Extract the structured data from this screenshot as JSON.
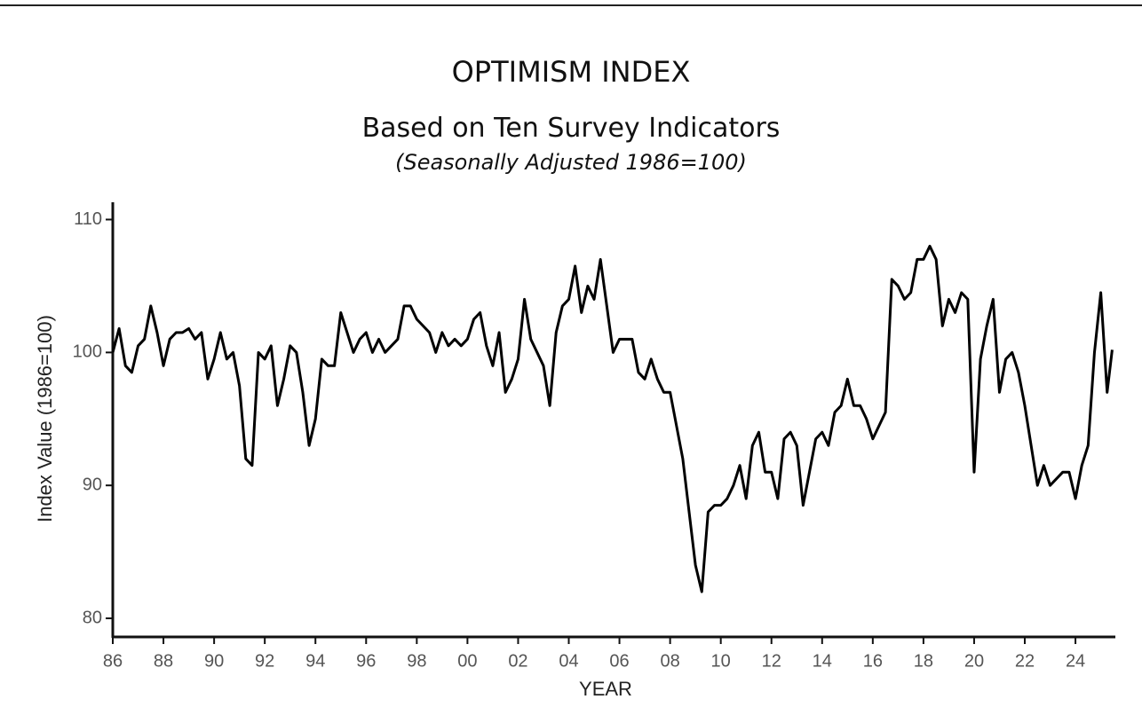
{
  "chart_data": {
    "type": "line",
    "title": "OPTIMISM INDEX",
    "subtitle": "Based on Ten Survey Indicators",
    "note": "(Seasonally Adjusted 1986=100)",
    "x_label": "YEAR",
    "y_label": "Index Value (1986=100)",
    "xlim": [
      1986,
      2025.54
    ],
    "ylim": [
      78.6,
      111.3
    ],
    "xticks": [
      {
        "value": 1986,
        "label": "86"
      },
      {
        "value": 1988,
        "label": "88"
      },
      {
        "value": 1990,
        "label": "90"
      },
      {
        "value": 1992,
        "label": "92"
      },
      {
        "value": 1994,
        "label": "94"
      },
      {
        "value": 1996,
        "label": "96"
      },
      {
        "value": 1998,
        "label": "98"
      },
      {
        "value": 2000,
        "label": "00"
      },
      {
        "value": 2002,
        "label": "02"
      },
      {
        "value": 2004,
        "label": "04"
      },
      {
        "value": 2006,
        "label": "06"
      },
      {
        "value": 2008,
        "label": "08"
      },
      {
        "value": 2010,
        "label": "10"
      },
      {
        "value": 2012,
        "label": "12"
      },
      {
        "value": 2014,
        "label": "14"
      },
      {
        "value": 2016,
        "label": "16"
      },
      {
        "value": 2018,
        "label": "18"
      },
      {
        "value": 2020,
        "label": "20"
      },
      {
        "value": 2022,
        "label": "22"
      },
      {
        "value": 2024,
        "label": "24"
      }
    ],
    "yticks": [
      80,
      90,
      100,
      110
    ],
    "grid": false,
    "series": [
      {
        "color": "#000000",
        "x": [
          1986,
          1986.25,
          1986.5,
          1986.75,
          1987,
          1987.25,
          1987.5,
          1987.75,
          1988,
          1988.25,
          1988.5,
          1988.75,
          1989,
          1989.25,
          1989.5,
          1989.75,
          1990,
          1990.25,
          1990.5,
          1990.75,
          1991,
          1991.25,
          1991.5,
          1991.75,
          1992,
          1992.25,
          1992.5,
          1992.75,
          1993,
          1993.25,
          1993.5,
          1993.75,
          1994,
          1994.25,
          1994.5,
          1994.75,
          1995,
          1995.25,
          1995.5,
          1995.75,
          1996,
          1996.25,
          1996.5,
          1996.75,
          1997,
          1997.25,
          1997.5,
          1997.75,
          1998,
          1998.25,
          1998.5,
          1998.75,
          1999,
          1999.25,
          1999.5,
          1999.75,
          2000,
          2000.25,
          2000.5,
          2000.75,
          2001,
          2001.25,
          2001.5,
          2001.75,
          2002,
          2002.25,
          2002.5,
          2002.75,
          2003,
          2003.25,
          2003.5,
          2003.75,
          2004,
          2004.25,
          2004.5,
          2004.75,
          2005,
          2005.25,
          2005.5,
          2005.75,
          2006,
          2006.25,
          2006.5,
          2006.75,
          2007,
          2007.25,
          2007.5,
          2007.75,
          2008,
          2008.25,
          2008.5,
          2008.75,
          2009,
          2009.25,
          2009.5,
          2009.75,
          2010,
          2010.25,
          2010.5,
          2010.75,
          2011,
          2011.25,
          2011.5,
          2011.75,
          2012,
          2012.25,
          2012.5,
          2012.75,
          2013,
          2013.25,
          2013.5,
          2013.75,
          2014,
          2014.25,
          2014.5,
          2014.75,
          2015,
          2015.25,
          2015.5,
          2015.75,
          2016,
          2016.25,
          2016.5,
          2016.75,
          2017,
          2017.25,
          2017.5,
          2017.75,
          2018,
          2018.25,
          2018.5,
          2018.75,
          2019,
          2019.25,
          2019.5,
          2019.75,
          2020,
          2020.25,
          2020.5,
          2020.75,
          2021,
          2021.25,
          2021.5,
          2021.75,
          2022,
          2022.25,
          2022.5,
          2022.75,
          2023,
          2023.25,
          2023.5,
          2023.75,
          2024,
          2024.25,
          2024.5,
          2024.75,
          2025,
          2025.25,
          2025.45
        ],
        "values": [
          100,
          101.8,
          99,
          98.5,
          100.5,
          101,
          103.5,
          101.5,
          99,
          101,
          101.5,
          101.5,
          101.8,
          101,
          101.5,
          98,
          99.5,
          101.5,
          99.5,
          100,
          97.5,
          92,
          91.5,
          100,
          99.5,
          100.5,
          96,
          98,
          100.5,
          100,
          97,
          93,
          95,
          99.5,
          99,
          99,
          103,
          101.5,
          100,
          101,
          101.5,
          100,
          101,
          100,
          100.5,
          101,
          103.5,
          103.5,
          102.5,
          102,
          101.5,
          100,
          101.5,
          100.5,
          101,
          100.5,
          101,
          102.5,
          103,
          100.5,
          99,
          101.5,
          97,
          98,
          99.5,
          104,
          101,
          100,
          99,
          96,
          101.5,
          103.5,
          104,
          106.5,
          103,
          105,
          104,
          107,
          103.5,
          100,
          101,
          101,
          101,
          98.5,
          98,
          99.5,
          98,
          97,
          97,
          94.5,
          92,
          88,
          84,
          82,
          88,
          88.5,
          88.5,
          89,
          90,
          91.5,
          89,
          93,
          94,
          91,
          91,
          89,
          93.5,
          94,
          93,
          88.5,
          91,
          93.5,
          94,
          93,
          95.5,
          96,
          98,
          96,
          96,
          95,
          93.5,
          94.5,
          95.5,
          105.5,
          105,
          104,
          104.5,
          107,
          107,
          108,
          107,
          102,
          104,
          103,
          104.5,
          104,
          91,
          99.5,
          102,
          104,
          97,
          99.5,
          100,
          98.5,
          96,
          93,
          90,
          91.5,
          90,
          90.5,
          91,
          91,
          89,
          91.5,
          93,
          100,
          104.5,
          97,
          100.2
        ]
      }
    ]
  }
}
